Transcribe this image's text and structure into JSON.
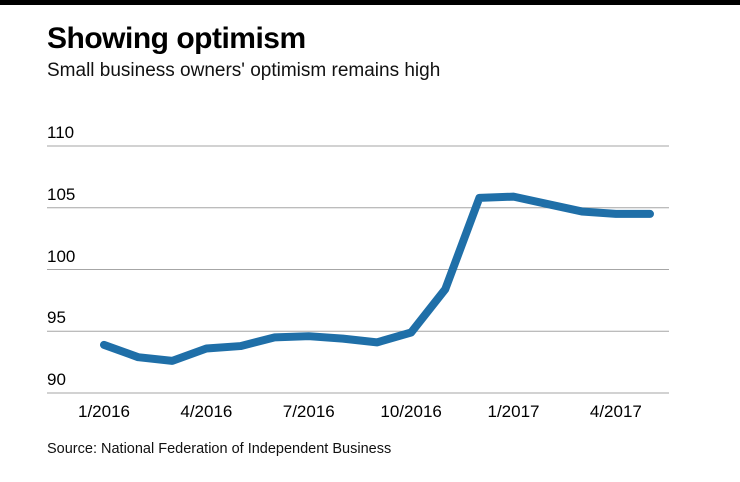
{
  "header": {
    "title": "Showing optimism",
    "subtitle": "Small business owners' optimism remains high"
  },
  "footer": {
    "source": "Source: National Federation of Independent Business"
  },
  "colors": {
    "line": "#1f6fa8",
    "grid": "#a6a6a6",
    "top_rule": "#000000"
  },
  "chart_data": {
    "type": "line",
    "title": "Showing optimism",
    "subtitle": "Small business owners' optimism remains high",
    "x": [
      "1/2016",
      "2/2016",
      "3/2016",
      "4/2016",
      "5/2016",
      "6/2016",
      "7/2016",
      "8/2016",
      "9/2016",
      "10/2016",
      "11/2016",
      "12/2016",
      "1/2017",
      "2/2017",
      "3/2017",
      "4/2017",
      "5/2017"
    ],
    "values": [
      93.9,
      92.9,
      92.6,
      93.6,
      93.8,
      94.5,
      94.6,
      94.4,
      94.1,
      94.9,
      98.4,
      105.8,
      105.9,
      105.3,
      104.7,
      104.5,
      104.5
    ],
    "xticks": [
      "1/2016",
      "4/2016",
      "7/2016",
      "10/2016",
      "1/2017",
      "4/2017"
    ],
    "yticks": [
      90,
      95,
      100,
      105,
      110
    ],
    "ylim": [
      90,
      110
    ],
    "grid": true,
    "legend": "none",
    "xlabel": "",
    "ylabel": ""
  }
}
